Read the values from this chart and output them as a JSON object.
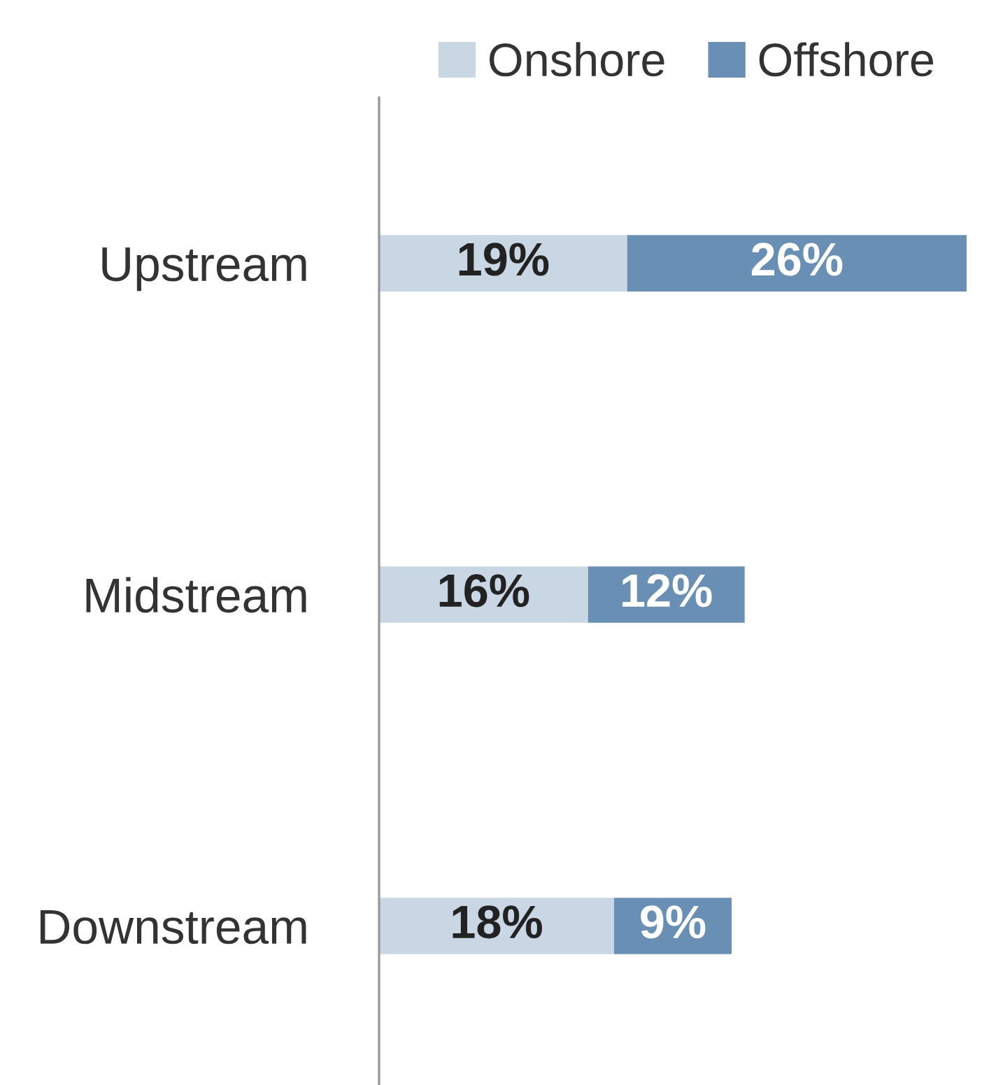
{
  "chart_data": {
    "type": "bar",
    "orientation": "horizontal",
    "stacked": true,
    "categories": [
      "Upstream",
      "Midstream",
      "Downstream"
    ],
    "series": [
      {
        "name": "Onshore",
        "color": "#c9d6e3",
        "values": [
          19,
          16,
          18
        ],
        "value_labels": [
          "19%",
          "16%",
          "18%"
        ]
      },
      {
        "name": "Offshore",
        "color": "#6a8fb5",
        "values": [
          26,
          12,
          9
        ],
        "value_labels": [
          "26%",
          "12%",
          "9%"
        ]
      }
    ],
    "legend": "top right",
    "grid": false,
    "tick_labels": "y"
  }
}
